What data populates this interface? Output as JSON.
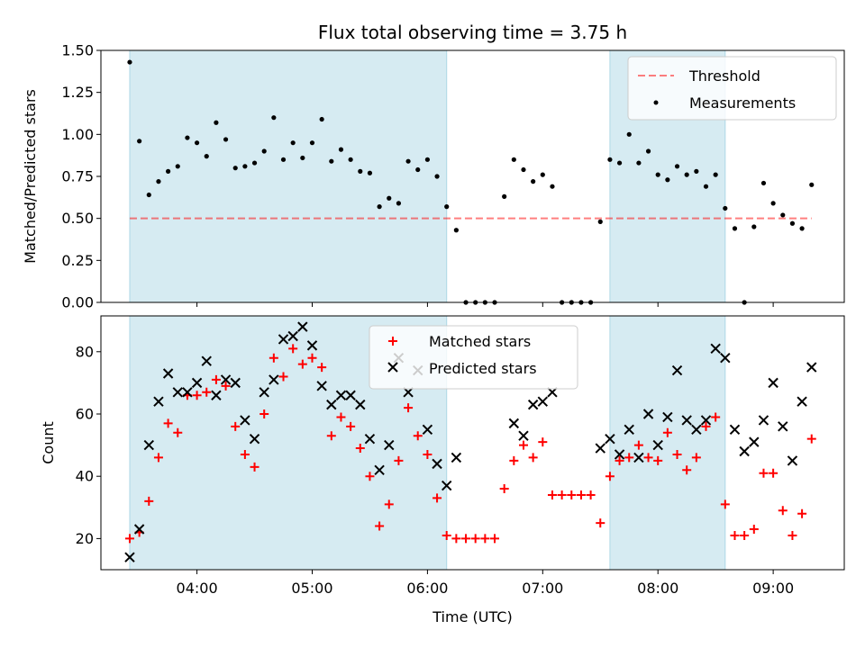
{
  "title": "Flux total observing time = 3.75 h",
  "xlabel": "Time (UTC)",
  "colors": {
    "band": "#add8e6",
    "threshold": "#ff0000",
    "matched": "#ff0000",
    "predicted": "#000000",
    "measurements": "#000000"
  },
  "chart_data": [
    {
      "type": "scatter",
      "panel": "top",
      "ylabel": "Matched/Predicted stars",
      "ylim": [
        0,
        1.5
      ],
      "yticks": [
        0,
        0.25,
        0.5,
        0.75,
        1.0,
        1.25,
        1.5
      ],
      "ytick_labels": [
        "0.00",
        "0.25",
        "0.50",
        "0.75",
        "1.00",
        "1.25",
        "1.50"
      ],
      "xlim_hours": [
        3.1667,
        9.6167
      ],
      "shaded_intervals": [
        [
          "03:25",
          "06:10"
        ],
        [
          "07:35",
          "08:35"
        ]
      ],
      "threshold": {
        "name": "Threshold",
        "value": 0.5,
        "x_range": [
          "03:25",
          "09:20"
        ],
        "style": "dashed"
      },
      "legend": {
        "entries": [
          "Threshold",
          "Measurements"
        ],
        "location": "upper right"
      },
      "series": [
        {
          "name": "Measurements",
          "marker": "dot",
          "x": [
            "03:25",
            "03:30",
            "03:35",
            "03:40",
            "03:45",
            "03:50",
            "03:55",
            "04:00",
            "04:05",
            "04:10",
            "04:15",
            "04:20",
            "04:25",
            "04:30",
            "04:35",
            "04:40",
            "04:45",
            "04:50",
            "04:55",
            "05:00",
            "05:05",
            "05:10",
            "05:15",
            "05:20",
            "05:25",
            "05:30",
            "05:35",
            "05:40",
            "05:45",
            "05:50",
            "05:55",
            "06:00",
            "06:05",
            "06:10",
            "06:15",
            "06:20",
            "06:25",
            "06:30",
            "06:35",
            "06:40",
            "06:45",
            "06:50",
            "06:55",
            "07:00",
            "07:05",
            "07:10",
            "07:15",
            "07:20",
            "07:25",
            "07:30",
            "07:35",
            "07:40",
            "07:45",
            "07:50",
            "07:55",
            "08:00",
            "08:05",
            "08:10",
            "08:15",
            "08:20",
            "08:25",
            "08:30",
            "08:35",
            "08:40",
            "08:45",
            "08:50",
            "08:55",
            "09:00",
            "09:05",
            "09:10",
            "09:15",
            "09:20"
          ],
          "y": [
            1.43,
            0.96,
            0.64,
            0.72,
            0.78,
            0.81,
            0.98,
            0.95,
            0.87,
            1.07,
            0.97,
            0.8,
            0.81,
            0.83,
            0.9,
            1.1,
            0.85,
            0.95,
            0.86,
            0.95,
            1.09,
            0.84,
            0.91,
            0.85,
            0.78,
            0.77,
            0.57,
            0.62,
            0.59,
            0.84,
            0.79,
            0.85,
            0.75,
            0.57,
            0.43,
            0,
            0,
            0,
            0,
            0.63,
            0.85,
            0.79,
            0.72,
            0.76,
            0.69,
            0,
            0,
            0,
            0,
            0.48,
            0.85,
            0.83,
            1.0,
            0.83,
            0.9,
            0.76,
            0.73,
            0.81,
            0.76,
            0.78,
            0.69,
            0.76,
            0.56,
            0.44,
            0,
            0.45,
            0.71,
            0.59,
            0.52,
            0.47,
            0.44,
            0.7
          ]
        }
      ]
    },
    {
      "type": "scatter",
      "panel": "bottom",
      "ylabel": "Count",
      "ylim": [
        10,
        91.5
      ],
      "yticks": [
        20,
        40,
        60,
        80
      ],
      "xlim_hours": [
        3.1667,
        9.6167
      ],
      "xticks": [
        "04:00",
        "05:00",
        "06:00",
        "07:00",
        "08:00",
        "09:00"
      ],
      "shaded_intervals": [
        [
          "03:25",
          "06:10"
        ],
        [
          "07:35",
          "08:35"
        ]
      ],
      "legend": {
        "entries": [
          "Matched stars",
          "Predicted stars"
        ],
        "location": "upper center"
      },
      "series": [
        {
          "name": "Matched stars",
          "marker": "plus",
          "x": [
            "03:25",
            "03:30",
            "03:35",
            "03:40",
            "03:45",
            "03:50",
            "03:55",
            "04:00",
            "04:05",
            "04:10",
            "04:15",
            "04:20",
            "04:25",
            "04:30",
            "04:35",
            "04:40",
            "04:45",
            "04:50",
            "04:55",
            "05:00",
            "05:05",
            "05:10",
            "05:15",
            "05:20",
            "05:25",
            "05:30",
            "05:35",
            "05:40",
            "05:45",
            "05:50",
            "05:55",
            "06:00",
            "06:05",
            "06:10",
            "06:15",
            "06:20",
            "06:25",
            "06:30",
            "06:35",
            "06:40",
            "06:45",
            "06:50",
            "06:55",
            "07:00",
            "07:05",
            "07:10",
            "07:15",
            "07:20",
            "07:25",
            "07:30",
            "07:35",
            "07:40",
            "07:45",
            "07:50",
            "07:55",
            "08:00",
            "08:05",
            "08:10",
            "08:15",
            "08:20",
            "08:25",
            "08:30",
            "08:35",
            "08:40",
            "08:45",
            "08:50",
            "08:55",
            "09:00",
            "09:05",
            "09:10",
            "09:15",
            "09:20"
          ],
          "y": [
            20,
            22,
            32,
            46,
            57,
            54,
            66,
            66,
            67,
            71,
            69,
            56,
            47,
            43,
            60,
            78,
            72,
            81,
            76,
            78,
            75,
            53,
            59,
            56,
            49,
            40,
            24,
            31,
            45,
            62,
            53,
            47,
            33,
            21,
            20,
            20,
            20,
            20,
            20,
            36,
            45,
            50,
            46,
            51,
            34,
            34,
            34,
            34,
            34,
            25,
            40,
            45,
            46,
            50,
            46,
            45,
            54,
            47,
            42,
            46,
            56,
            59,
            31,
            21,
            21,
            23,
            41,
            41,
            29,
            21,
            28,
            52
          ]
        },
        {
          "name": "Predicted stars",
          "marker": "x",
          "x": [
            "03:25",
            "03:30",
            "03:35",
            "03:40",
            "03:45",
            "03:50",
            "03:55",
            "04:00",
            "04:05",
            "04:10",
            "04:15",
            "04:20",
            "04:25",
            "04:30",
            "04:35",
            "04:40",
            "04:45",
            "04:50",
            "04:55",
            "05:00",
            "05:05",
            "05:10",
            "05:15",
            "05:20",
            "05:25",
            "05:30",
            "05:35",
            "05:40",
            "05:45",
            "05:50",
            "05:55",
            "06:00",
            "06:05",
            "06:10",
            "06:15",
            "06:45",
            "06:50",
            "06:55",
            "07:00",
            "07:05",
            "07:30",
            "07:35",
            "07:40",
            "07:45",
            "07:50",
            "07:55",
            "08:00",
            "08:05",
            "08:10",
            "08:15",
            "08:20",
            "08:25",
            "08:30",
            "08:35",
            "08:40",
            "08:45",
            "08:50",
            "08:55",
            "09:00",
            "09:05",
            "09:10",
            "09:15",
            "09:20"
          ],
          "y": [
            14,
            23,
            50,
            64,
            73,
            67,
            67,
            70,
            77,
            66,
            71,
            70,
            58,
            52,
            67,
            71,
            84,
            85,
            88,
            82,
            69,
            63,
            66,
            66,
            63,
            52,
            42,
            50,
            78,
            67,
            74,
            55,
            44,
            37,
            46,
            57,
            53,
            63,
            64,
            67,
            49,
            52,
            47,
            55,
            46,
            60,
            50,
            59,
            74,
            58,
            55,
            58,
            81,
            78,
            55,
            48,
            51,
            58,
            70,
            56,
            45,
            64,
            75
          ]
        }
      ]
    }
  ]
}
